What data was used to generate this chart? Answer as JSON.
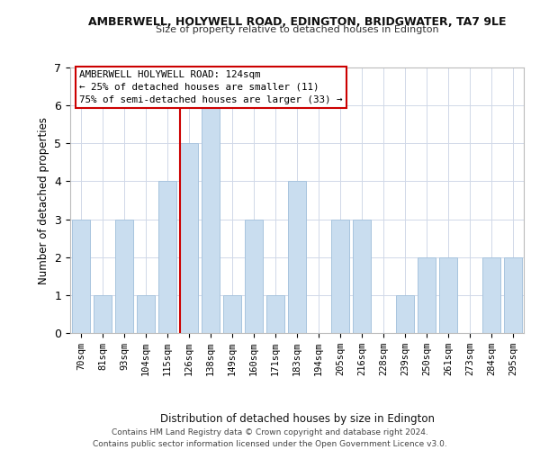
{
  "title_line1": "AMBERWELL, HOLYWELL ROAD, EDINGTON, BRIDGWATER, TA7 9LE",
  "title_line2": "Size of property relative to detached houses in Edington",
  "xlabel": "Distribution of detached houses by size in Edington",
  "ylabel": "Number of detached properties",
  "categories": [
    "70sqm",
    "81sqm",
    "93sqm",
    "104sqm",
    "115sqm",
    "126sqm",
    "138sqm",
    "149sqm",
    "160sqm",
    "171sqm",
    "183sqm",
    "194sqm",
    "205sqm",
    "216sqm",
    "228sqm",
    "239sqm",
    "250sqm",
    "261sqm",
    "273sqm",
    "284sqm",
    "295sqm"
  ],
  "values": [
    3,
    1,
    3,
    1,
    4,
    5,
    6,
    1,
    3,
    1,
    4,
    0,
    3,
    3,
    0,
    1,
    2,
    2,
    0,
    2,
    2
  ],
  "bar_color": "#c9ddef",
  "bar_edge_color": "#a8c4de",
  "highlight_index": 5,
  "highlight_line_color": "#cc0000",
  "annotation_box_text": "AMBERWELL HOLYWELL ROAD: 124sqm\n← 25% of detached houses are smaller (11)\n75% of semi-detached houses are larger (33) →",
  "ylim": [
    0,
    7
  ],
  "yticks": [
    0,
    1,
    2,
    3,
    4,
    5,
    6,
    7
  ],
  "footer_text": "Contains HM Land Registry data © Crown copyright and database right 2024.\nContains public sector information licensed under the Open Government Licence v3.0.",
  "background_color": "#ffffff",
  "grid_color": "#d0d8e8"
}
